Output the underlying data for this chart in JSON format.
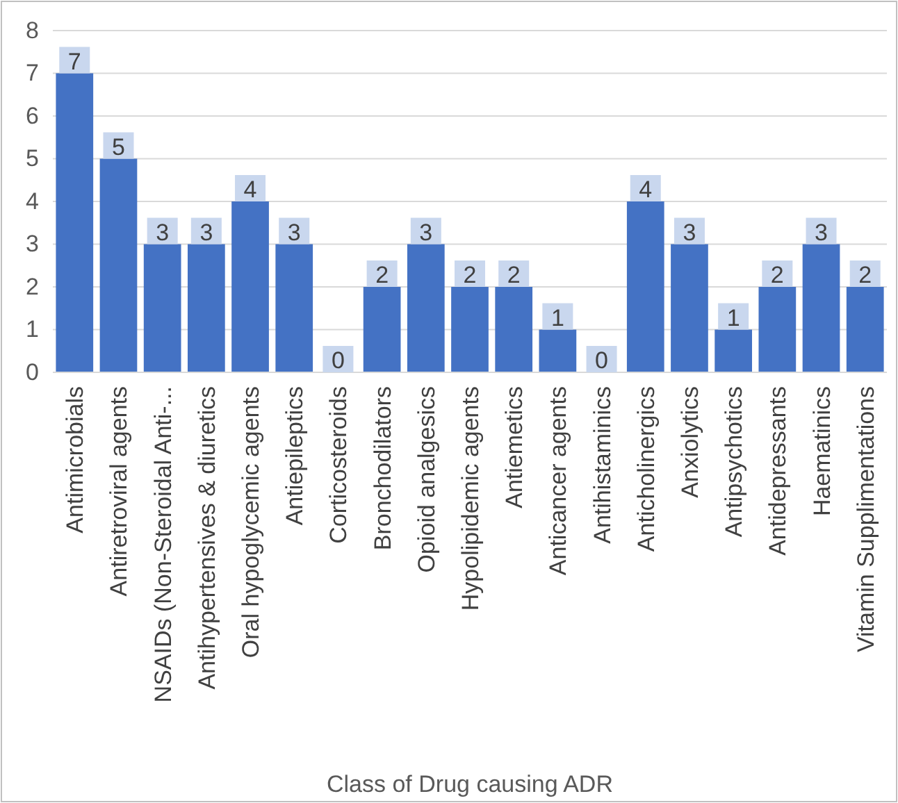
{
  "chart_data": {
    "type": "bar",
    "xlabel": "Class of Drug causing ADR",
    "categories": [
      "Antimicrobials",
      "Antiretroviral agents",
      "NSAIDs (Non-Steroidal Anti-...",
      "Antihypertensives & diuretics",
      "Oral hypoglycemic agents",
      "Antiepileptics",
      "Corticosteroids",
      "Bronchodilators",
      "Opioid analgesics",
      "Hypolipidemic agents",
      "Antiemetics",
      "Anticancer agents",
      "Antihistaminics",
      "Anticholinergics",
      "Anxiolytics",
      "Antipsychotics",
      "Antidepressants",
      "Haematinics",
      "Vitamin Supplimentations"
    ],
    "values": [
      7,
      5,
      3,
      3,
      4,
      3,
      0,
      2,
      3,
      2,
      2,
      1,
      0,
      4,
      3,
      1,
      2,
      3,
      2
    ],
    "color": "#4472c4",
    "ylim": [
      0,
      8
    ],
    "yticks": [
      0,
      1,
      2,
      3,
      4,
      5,
      6,
      7,
      8
    ],
    "grid": "y",
    "data_labels": true
  }
}
